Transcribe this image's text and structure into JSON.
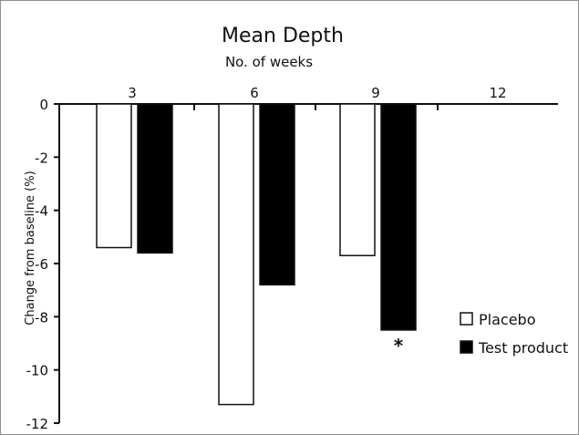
{
  "chart_data": {
    "type": "bar",
    "title": "Mean Depth",
    "subtitle": "No. of weeks",
    "xlabel": "",
    "ylabel": "Change from baseline (%)",
    "categories": [
      "3",
      "6",
      "9",
      "12"
    ],
    "series": [
      {
        "name": "Placebo",
        "color": "#ffffff",
        "values": [
          -5.4,
          -11.3,
          -5.7,
          null
        ]
      },
      {
        "name": "Test product",
        "color": "#000000",
        "values": [
          -5.6,
          -6.8,
          -8.5,
          null
        ]
      }
    ],
    "ylim": [
      -12,
      0
    ],
    "yticks": [
      0,
      -2,
      -4,
      -6,
      -8,
      -10,
      -12
    ],
    "grid": false,
    "legend_position": "right",
    "annotations": [
      {
        "text": "*",
        "category": "9",
        "series": "Test product"
      }
    ]
  }
}
